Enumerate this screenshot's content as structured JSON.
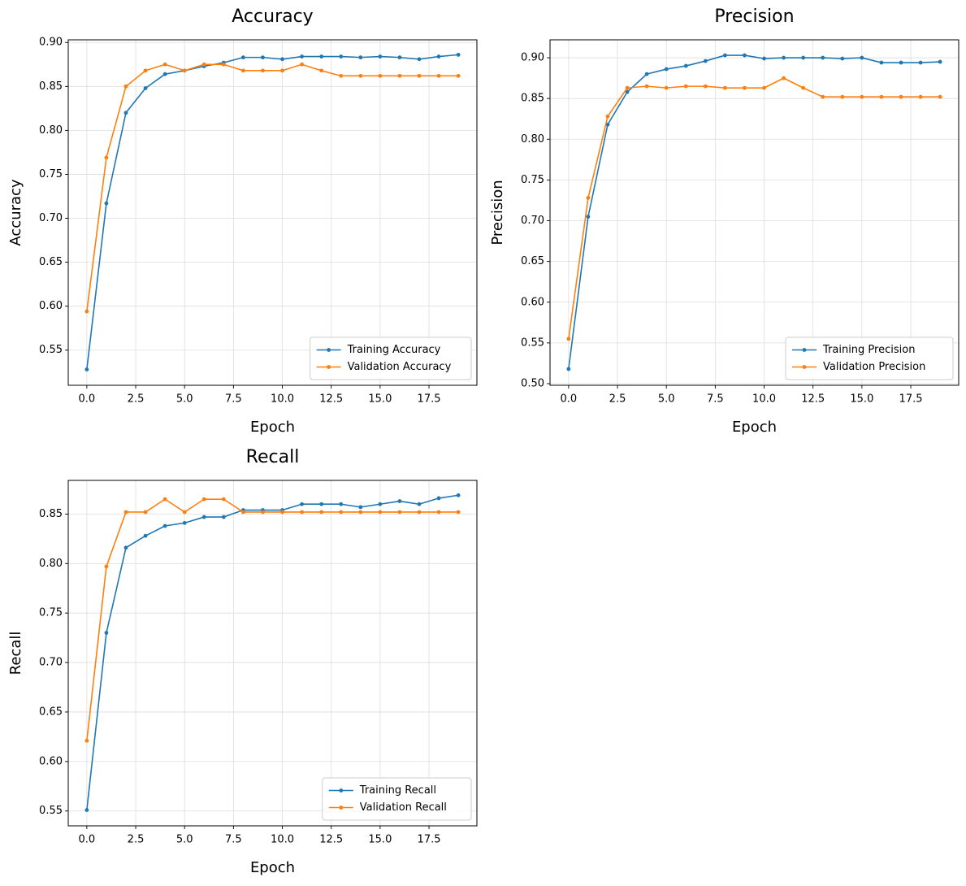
{
  "chart_data": [
    {
      "type": "line",
      "title": "Accuracy",
      "xlabel": "Epoch",
      "ylabel": "Accuracy",
      "x": [
        0,
        1,
        2,
        3,
        4,
        5,
        6,
        7,
        8,
        9,
        10,
        11,
        12,
        13,
        14,
        15,
        16,
        17,
        18,
        19
      ],
      "xlim": [
        -0.95,
        19.95
      ],
      "ylim": [
        0.51,
        0.903
      ],
      "xticks": [
        0,
        2.5,
        5,
        7.5,
        10,
        12.5,
        15,
        17.5
      ],
      "xtick_labels": [
        "0.0",
        "2.5",
        "5.0",
        "7.5",
        "10.0",
        "12.5",
        "15.0",
        "17.5"
      ],
      "yticks": [
        0.55,
        0.6,
        0.65,
        0.7,
        0.75,
        0.8,
        0.85,
        0.9
      ],
      "ytick_labels": [
        "0.55",
        "0.60",
        "0.65",
        "0.70",
        "0.75",
        "0.80",
        "0.85",
        "0.90"
      ],
      "grid": true,
      "legend_position": "lower-right",
      "series": [
        {
          "name": "Training Accuracy",
          "color": "#1f77b4",
          "values": [
            0.528,
            0.717,
            0.82,
            0.848,
            0.864,
            0.868,
            0.873,
            0.877,
            0.883,
            0.883,
            0.881,
            0.884,
            0.884,
            0.884,
            0.883,
            0.884,
            0.883,
            0.881,
            0.884,
            0.886
          ]
        },
        {
          "name": "Validation Accuracy",
          "color": "#ff7f0e",
          "values": [
            0.594,
            0.769,
            0.85,
            0.868,
            0.875,
            0.868,
            0.875,
            0.875,
            0.868,
            0.868,
            0.868,
            0.875,
            0.868,
            0.862,
            0.862,
            0.862,
            0.862,
            0.862,
            0.862,
            0.862
          ]
        }
      ]
    },
    {
      "type": "line",
      "title": "Precision",
      "xlabel": "Epoch",
      "ylabel": "Precision",
      "x": [
        0,
        1,
        2,
        3,
        4,
        5,
        6,
        7,
        8,
        9,
        10,
        11,
        12,
        13,
        14,
        15,
        16,
        17,
        18,
        19
      ],
      "xlim": [
        -0.95,
        19.95
      ],
      "ylim": [
        0.498,
        0.922
      ],
      "xticks": [
        0,
        2.5,
        5,
        7.5,
        10,
        12.5,
        15,
        17.5
      ],
      "xtick_labels": [
        "0.0",
        "2.5",
        "5.0",
        "7.5",
        "10.0",
        "12.5",
        "15.0",
        "17.5"
      ],
      "yticks": [
        0.5,
        0.55,
        0.6,
        0.65,
        0.7,
        0.75,
        0.8,
        0.85,
        0.9
      ],
      "ytick_labels": [
        "0.50",
        "0.55",
        "0.60",
        "0.65",
        "0.70",
        "0.75",
        "0.80",
        "0.85",
        "0.90"
      ],
      "grid": true,
      "legend_position": "lower-right",
      "series": [
        {
          "name": "Training Precision",
          "color": "#1f77b4",
          "values": [
            0.518,
            0.705,
            0.818,
            0.858,
            0.88,
            0.886,
            0.89,
            0.896,
            0.903,
            0.903,
            0.899,
            0.9,
            0.9,
            0.9,
            0.899,
            0.9,
            0.894,
            0.894,
            0.894,
            0.895
          ]
        },
        {
          "name": "Validation Precision",
          "color": "#ff7f0e",
          "values": [
            0.555,
            0.728,
            0.828,
            0.863,
            0.865,
            0.863,
            0.865,
            0.865,
            0.863,
            0.863,
            0.863,
            0.875,
            0.863,
            0.852,
            0.852,
            0.852,
            0.852,
            0.852,
            0.852,
            0.852
          ]
        }
      ]
    },
    {
      "type": "line",
      "title": "Recall",
      "xlabel": "Epoch",
      "ylabel": "Recall",
      "x": [
        0,
        1,
        2,
        3,
        4,
        5,
        6,
        7,
        8,
        9,
        10,
        11,
        12,
        13,
        14,
        15,
        16,
        17,
        18,
        19
      ],
      "xlim": [
        -0.95,
        19.95
      ],
      "ylim": [
        0.535,
        0.884
      ],
      "xticks": [
        0,
        2.5,
        5,
        7.5,
        10,
        12.5,
        15,
        17.5
      ],
      "xtick_labels": [
        "0.0",
        "2.5",
        "5.0",
        "7.5",
        "10.0",
        "12.5",
        "15.0",
        "17.5"
      ],
      "yticks": [
        0.55,
        0.6,
        0.65,
        0.7,
        0.75,
        0.8,
        0.85
      ],
      "ytick_labels": [
        "0.55",
        "0.60",
        "0.65",
        "0.70",
        "0.75",
        "0.80",
        "0.85"
      ],
      "grid": true,
      "legend_position": "lower-right",
      "series": [
        {
          "name": "Training Recall",
          "color": "#1f77b4",
          "values": [
            0.551,
            0.73,
            0.816,
            0.828,
            0.838,
            0.841,
            0.847,
            0.847,
            0.854,
            0.854,
            0.854,
            0.86,
            0.86,
            0.86,
            0.857,
            0.86,
            0.863,
            0.86,
            0.866,
            0.869
          ]
        },
        {
          "name": "Validation Recall",
          "color": "#ff7f0e",
          "values": [
            0.621,
            0.797,
            0.852,
            0.852,
            0.865,
            0.852,
            0.865,
            0.865,
            0.852,
            0.852,
            0.852,
            0.852,
            0.852,
            0.852,
            0.852,
            0.852,
            0.852,
            0.852,
            0.852,
            0.852
          ]
        }
      ]
    }
  ]
}
